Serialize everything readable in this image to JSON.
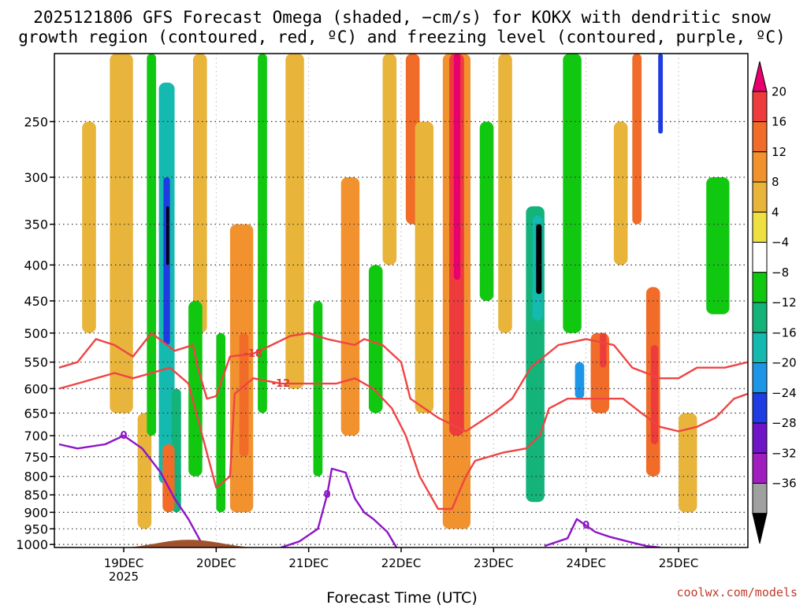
{
  "chart_data": {
    "type": "heatmap",
    "title_line1": "2025121806 GFS Forecast Omega (shaded, −cm/s) for KOKX with dendritic snow",
    "title_line2": "growth region (contoured, red, ºC) and freezing level (contoured, purple, ºC)",
    "xlabel": "Forecast Time (UTC)",
    "credit": "coolwx.com/models",
    "y_axis": {
      "scale": "pressure",
      "reversed": true,
      "ylim": [
        1010,
        200
      ],
      "ticks": [
        250,
        300,
        350,
        400,
        450,
        500,
        550,
        600,
        650,
        700,
        750,
        800,
        850,
        900,
        950,
        1000
      ]
    },
    "x_axis": {
      "xlim": [
        "2025-12-18T06:00",
        "2025-12-25T18:00"
      ],
      "ticks": [
        {
          "t": "2025-12-19T00:00",
          "label": "19DEC",
          "sublabel": "2025"
        },
        {
          "t": "2025-12-20T00:00",
          "label": "20DEC",
          "sublabel": ""
        },
        {
          "t": "2025-12-21T00:00",
          "label": "21DEC",
          "sublabel": ""
        },
        {
          "t": "2025-12-22T00:00",
          "label": "22DEC",
          "sublabel": ""
        },
        {
          "t": "2025-12-23T00:00",
          "label": "23DEC",
          "sublabel": ""
        },
        {
          "t": "2025-12-24T00:00",
          "label": "24DEC",
          "sublabel": ""
        },
        {
          "t": "2025-12-25T00:00",
          "label": "25DEC",
          "sublabel": ""
        }
      ]
    },
    "grid": true,
    "colorbar": {
      "placement": "right",
      "labels": [
        "20",
        "16",
        "12",
        "8",
        "4",
        "−4",
        "−8",
        "−12",
        "−16",
        "−20",
        "−24",
        "−28",
        "−32",
        "−36"
      ],
      "colors": [
        "#e8006e",
        "#ee3c3c",
        "#f06c28",
        "#f2922e",
        "#e8b43a",
        "#ede040",
        "#ffffff",
        "#11c811",
        "#13b37a",
        "#14b9b0",
        "#1e96e8",
        "#1e3ce1",
        "#7014c8",
        "#a01ec0",
        "#a0a0a0",
        "#000000"
      ]
    },
    "omega_regions": [
      {
        "t0": 19.38,
        "t1": 19.55,
        "p0": 220,
        "p1": 820,
        "v": -16
      },
      {
        "t0": 19.43,
        "t1": 19.5,
        "p0": 300,
        "p1": 520,
        "v": -24
      },
      {
        "t0": 19.46,
        "t1": 19.49,
        "p0": 330,
        "p1": 400,
        "v": -36
      },
      {
        "t0": 19.52,
        "t1": 19.62,
        "p0": 600,
        "p1": 900,
        "v": -12
      },
      {
        "t0": 19.15,
        "t1": 19.3,
        "p0": 650,
        "p1": 950,
        "v": 6
      },
      {
        "t0": 19.42,
        "t1": 19.55,
        "p0": 720,
        "p1": 900,
        "v": 12
      },
      {
        "t0": 19.25,
        "t1": 19.35,
        "p0": 200,
        "p1": 700,
        "v": -6
      },
      {
        "t0": 18.55,
        "t1": 18.7,
        "p0": 250,
        "p1": 500,
        "v": 6
      },
      {
        "t0": 18.85,
        "t1": 19.1,
        "p0": 200,
        "p1": 650,
        "v": 6
      },
      {
        "t0": 19.75,
        "t1": 19.9,
        "p0": 200,
        "p1": 500,
        "v": 6
      },
      {
        "t0": 19.7,
        "t1": 19.85,
        "p0": 450,
        "p1": 800,
        "v": -6
      },
      {
        "t0": 20.0,
        "t1": 20.1,
        "p0": 500,
        "p1": 900,
        "v": -6
      },
      {
        "t0": 20.15,
        "t1": 20.4,
        "p0": 350,
        "p1": 900,
        "v": 8
      },
      {
        "t0": 20.25,
        "t1": 20.35,
        "p0": 500,
        "p1": 750,
        "v": 12
      },
      {
        "t0": 20.45,
        "t1": 20.55,
        "p0": 200,
        "p1": 650,
        "v": -6
      },
      {
        "t0": 20.75,
        "t1": 20.95,
        "p0": 200,
        "p1": 600,
        "v": 6
      },
      {
        "t0": 21.05,
        "t1": 21.15,
        "p0": 450,
        "p1": 800,
        "v": -6
      },
      {
        "t0": 21.35,
        "t1": 21.55,
        "p0": 300,
        "p1": 700,
        "v": 8
      },
      {
        "t0": 21.65,
        "t1": 21.8,
        "p0": 400,
        "p1": 650,
        "v": -6
      },
      {
        "t0": 21.8,
        "t1": 21.95,
        "p0": 200,
        "p1": 400,
        "v": 6
      },
      {
        "t0": 22.05,
        "t1": 22.2,
        "p0": 200,
        "p1": 350,
        "v": 12
      },
      {
        "t0": 22.15,
        "t1": 22.35,
        "p0": 250,
        "p1": 650,
        "v": 6
      },
      {
        "t0": 22.45,
        "t1": 22.75,
        "p0": 200,
        "p1": 950,
        "v": 8
      },
      {
        "t0": 22.52,
        "t1": 22.68,
        "p0": 200,
        "p1": 700,
        "v": 14
      },
      {
        "t0": 22.57,
        "t1": 22.64,
        "p0": 200,
        "p1": 420,
        "v": 20
      },
      {
        "t0": 22.85,
        "t1": 23.0,
        "p0": 250,
        "p1": 450,
        "v": -6
      },
      {
        "t0": 23.05,
        "t1": 23.2,
        "p0": 200,
        "p1": 500,
        "v": 6
      },
      {
        "t0": 23.35,
        "t1": 23.55,
        "p0": 330,
        "p1": 870,
        "v": -10
      },
      {
        "t0": 23.42,
        "t1": 23.53,
        "p0": 340,
        "p1": 480,
        "v": -16
      },
      {
        "t0": 23.46,
        "t1": 23.52,
        "p0": 350,
        "p1": 440,
        "v": -36
      },
      {
        "t0": 23.75,
        "t1": 23.95,
        "p0": 200,
        "p1": 500,
        "v": -6
      },
      {
        "t0": 23.88,
        "t1": 23.98,
        "p0": 550,
        "p1": 620,
        "v": -20
      },
      {
        "t0": 24.05,
        "t1": 24.25,
        "p0": 500,
        "p1": 650,
        "v": 12
      },
      {
        "t0": 24.15,
        "t1": 24.22,
        "p0": 500,
        "p1": 560,
        "v": 16
      },
      {
        "t0": 24.3,
        "t1": 24.45,
        "p0": 250,
        "p1": 400,
        "v": 6
      },
      {
        "t0": 24.5,
        "t1": 24.6,
        "p0": 200,
        "p1": 350,
        "v": 12
      },
      {
        "t0": 24.65,
        "t1": 24.8,
        "p0": 430,
        "p1": 800,
        "v": 12
      },
      {
        "t0": 24.7,
        "t1": 24.78,
        "p0": 520,
        "p1": 720,
        "v": 16
      },
      {
        "t0": 24.78,
        "t1": 24.83,
        "p0": 200,
        "p1": 260,
        "v": -24
      },
      {
        "t0": 25.3,
        "t1": 25.55,
        "p0": 300,
        "p1": 470,
        "v": -6
      },
      {
        "t0": 25.0,
        "t1": 25.2,
        "p0": 650,
        "p1": 900,
        "v": 6
      }
    ],
    "dgz_contours": [
      {
        "label": "-18",
        "points": [
          [
            18.3,
            560
          ],
          [
            18.5,
            550
          ],
          [
            18.7,
            510
          ],
          [
            18.9,
            520
          ],
          [
            19.1,
            540
          ],
          [
            19.3,
            500
          ],
          [
            19.55,
            530
          ],
          [
            19.75,
            520
          ],
          [
            19.8,
            560
          ],
          [
            19.9,
            620
          ],
          [
            20.0,
            615
          ],
          [
            20.15,
            540
          ],
          [
            20.4,
            535
          ],
          [
            20.6,
            520
          ],
          [
            20.8,
            505
          ],
          [
            21.0,
            500
          ],
          [
            21.2,
            510
          ],
          [
            21.5,
            520
          ],
          [
            21.6,
            510
          ],
          [
            21.8,
            520
          ],
          [
            22.0,
            550
          ],
          [
            22.1,
            620
          ],
          [
            22.4,
            660
          ],
          [
            22.7,
            690
          ],
          [
            23.0,
            650
          ],
          [
            23.2,
            620
          ],
          [
            23.4,
            560
          ],
          [
            23.7,
            520
          ],
          [
            24.0,
            510
          ],
          [
            24.3,
            520
          ],
          [
            24.5,
            560
          ],
          [
            24.8,
            580
          ],
          [
            25.0,
            580
          ],
          [
            25.2,
            560
          ],
          [
            25.5,
            560
          ],
          [
            25.75,
            550
          ]
        ]
      },
      {
        "label": "-12",
        "points": [
          [
            18.3,
            600
          ],
          [
            18.5,
            590
          ],
          [
            18.7,
            580
          ],
          [
            18.9,
            570
          ],
          [
            19.1,
            580
          ],
          [
            19.3,
            570
          ],
          [
            19.5,
            560
          ],
          [
            19.7,
            590
          ],
          [
            19.85,
            700
          ],
          [
            20.0,
            830
          ],
          [
            20.15,
            800
          ],
          [
            20.2,
            610
          ],
          [
            20.4,
            580
          ],
          [
            20.7,
            590
          ],
          [
            21.0,
            590
          ],
          [
            21.3,
            590
          ],
          [
            21.5,
            580
          ],
          [
            21.7,
            600
          ],
          [
            21.9,
            640
          ],
          [
            22.05,
            700
          ],
          [
            22.2,
            800
          ],
          [
            22.4,
            890
          ],
          [
            22.55,
            890
          ],
          [
            22.7,
            800
          ],
          [
            22.8,
            760
          ],
          [
            23.1,
            740
          ],
          [
            23.35,
            730
          ],
          [
            23.5,
            700
          ],
          [
            23.6,
            640
          ],
          [
            23.8,
            620
          ],
          [
            24.0,
            620
          ],
          [
            24.2,
            620
          ],
          [
            24.4,
            620
          ],
          [
            24.6,
            650
          ],
          [
            24.8,
            680
          ],
          [
            25.0,
            690
          ],
          [
            25.2,
            680
          ],
          [
            25.4,
            660
          ],
          [
            25.6,
            620
          ],
          [
            25.75,
            610
          ]
        ]
      }
    ],
    "freezing_contours": [
      {
        "label": "0",
        "points": [
          [
            18.3,
            720
          ],
          [
            18.5,
            730
          ],
          [
            18.8,
            720
          ],
          [
            19.0,
            700
          ],
          [
            19.2,
            730
          ],
          [
            19.4,
            790
          ],
          [
            19.55,
            860
          ],
          [
            19.7,
            920
          ],
          [
            19.85,
            1000
          ],
          [
            19.95,
            1010
          ]
        ]
      },
      {
        "label": "0",
        "points": [
          [
            20.7,
            1010
          ],
          [
            20.9,
            990
          ],
          [
            21.1,
            950
          ],
          [
            21.2,
            850
          ],
          [
            21.25,
            780
          ],
          [
            21.4,
            790
          ],
          [
            21.5,
            860
          ],
          [
            21.6,
            900
          ],
          [
            21.7,
            920
          ],
          [
            21.85,
            960
          ],
          [
            21.95,
            1010
          ]
        ]
      },
      {
        "label": "0",
        "points": [
          [
            23.55,
            1005
          ],
          [
            23.8,
            980
          ],
          [
            23.9,
            920
          ],
          [
            24.0,
            940
          ],
          [
            24.1,
            960
          ],
          [
            24.25,
            975
          ],
          [
            24.45,
            990
          ],
          [
            24.65,
            1005
          ],
          [
            24.8,
            1010
          ]
        ]
      }
    ]
  }
}
